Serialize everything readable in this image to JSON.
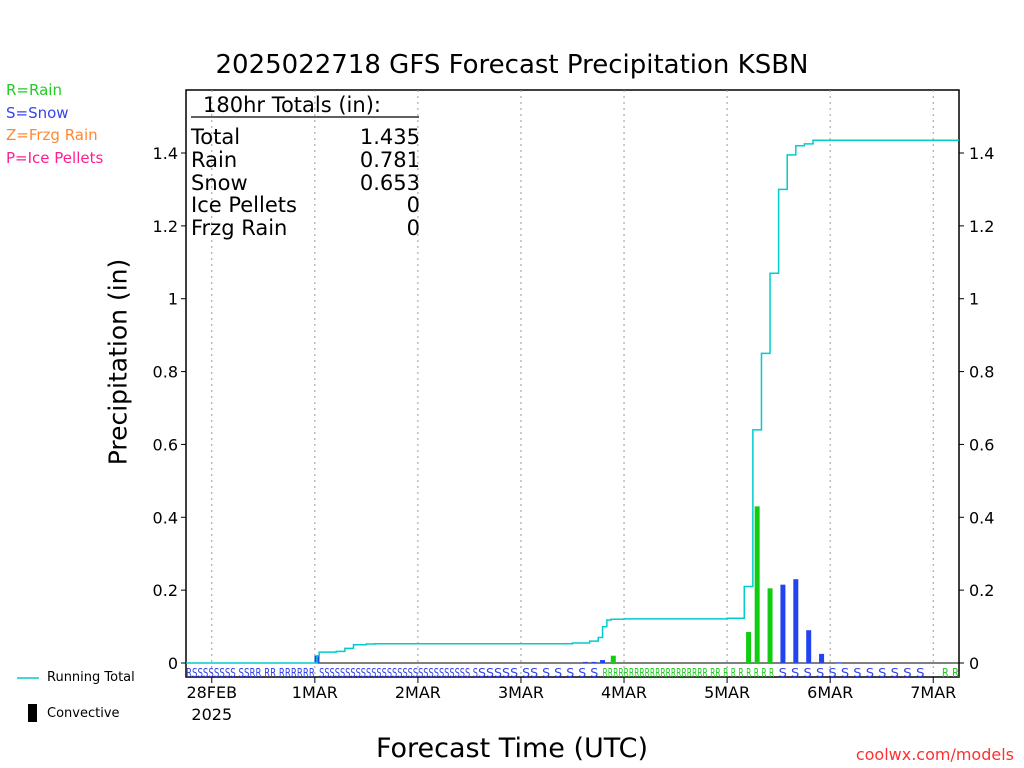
{
  "title": "2025022718 GFS Forecast Precipitation KSBN",
  "site_credit": "coolwx.com/models",
  "legend_types": [
    {
      "label": "R=Rain",
      "color": "#22cc22"
    },
    {
      "label": "S=Snow",
      "color": "#3344ee"
    },
    {
      "label": "Z=Frzg Rain",
      "color": "#ff8833"
    },
    {
      "label": "P=Ice Pellets",
      "color": "#ff1f8f"
    }
  ],
  "bottom_legend": {
    "running_total": "Running Total",
    "convective": "Convective"
  },
  "colors": {
    "running_total": "#00cccc",
    "rain": "#11cc11",
    "snow": "#2244ee",
    "grid": "#999999"
  },
  "totals": {
    "header": "180hr Totals (in):",
    "rows": [
      {
        "label": "Total",
        "value": "1.435"
      },
      {
        "label": "Rain",
        "value": "0.781"
      },
      {
        "label": "Snow",
        "value": "0.653"
      },
      {
        "label": "Ice Pellets",
        "value": "0"
      },
      {
        "label": "Frzg Rain",
        "value": "0"
      }
    ]
  },
  "chart_data": {
    "type": "bar",
    "title": "2025022718 GFS Forecast Precipitation KSBN",
    "xlabel": "Forecast Time (UTC)",
    "ylabel": "Precipitation (in)",
    "ylim": [
      0,
      1.55
    ],
    "yticks": [
      0,
      0.2,
      0.4,
      0.6,
      0.8,
      1,
      1.2,
      1.4
    ],
    "ytick_labels": [
      "0",
      "0.2",
      "0.4",
      "0.6",
      "0.8",
      "1",
      "1.2",
      "1.4"
    ],
    "x_unit": "forecast hour",
    "xlim": [
      0,
      180
    ],
    "xticks": [
      {
        "hour": 6,
        "label": "28FEB",
        "sublabel": "2025"
      },
      {
        "hour": 30,
        "label": "1MAR"
      },
      {
        "hour": 54,
        "label": "2MAR"
      },
      {
        "hour": 78,
        "label": "3MAR"
      },
      {
        "hour": 102,
        "label": "4MAR"
      },
      {
        "hour": 126,
        "label": "5MAR"
      },
      {
        "hour": 150,
        "label": "6MAR"
      },
      {
        "hour": 174,
        "label": "7MAR"
      }
    ],
    "grid": "vertical dotted at each day",
    "series": [
      {
        "name": "Running Total",
        "type": "step-line",
        "x": [
          0,
          30,
          30.5,
          31,
          33,
          35,
          37,
          39,
          40,
          42,
          44,
          46,
          50,
          60,
          70,
          80,
          90,
          94,
          95,
          96,
          97,
          98,
          99,
          100,
          102,
          126,
          130,
          132,
          134,
          136,
          138,
          140,
          142,
          144,
          146,
          148,
          150,
          152,
          154,
          180
        ],
        "y": [
          0,
          0,
          0.02,
          0.03,
          0.03,
          0.032,
          0.04,
          0.05,
          0.05,
          0.052,
          0.053,
          0.053,
          0.053,
          0.053,
          0.053,
          0.053,
          0.055,
          0.06,
          0.06,
          0.07,
          0.1,
          0.118,
          0.12,
          0.12,
          0.121,
          0.123,
          0.21,
          0.64,
          0.85,
          1.07,
          1.3,
          1.395,
          1.42,
          1.425,
          1.435,
          1.435,
          1.435,
          1.435,
          1.435,
          1.435
        ]
      },
      {
        "name": "Rain",
        "type": "bar",
        "x": [
          99.5,
          131,
          133,
          136
        ],
        "y": [
          0.02,
          0.085,
          0.43,
          0.205
        ]
      },
      {
        "name": "Snow",
        "type": "bar",
        "x": [
          30.5,
          93,
          95,
          97,
          139,
          142,
          145,
          148,
          152
        ],
        "y": [
          0.02,
          0.003,
          0.003,
          0.008,
          0.215,
          0.23,
          0.09,
          0.025,
          0.002
        ]
      }
    ],
    "precip_type_strip": [
      {
        "text": "RSSSSSSSS SSRR RR RRRRRR",
        "color": "mixed",
        "hour_start": 0,
        "hour_end": 30
      },
      {
        "text": "SSSSSSSSSSSSSSSSSSSSSSSSSSSSS S",
        "color": "snow",
        "hour_start": 31,
        "hour_end": 68
      },
      {
        "text": "SSSSS SS S S S S S",
        "color": "snow",
        "hour_start": 68,
        "hour_end": 96
      },
      {
        "text": "RRRRRRRRRRRRRRRRRRRR RR R R R R R R R",
        "color": "rain",
        "hour_start": 97,
        "hour_end": 137
      },
      {
        "text": "S S S S S S S S S S",
        "color": "snow",
        "hour_start": 138,
        "hour_end": 166
      },
      {
        "text": "S S",
        "color": "snow",
        "hour_start": 167,
        "hour_end": 172
      },
      {
        "text": "R R",
        "color": "rain",
        "hour_start": 176,
        "hour_end": 180
      }
    ]
  }
}
